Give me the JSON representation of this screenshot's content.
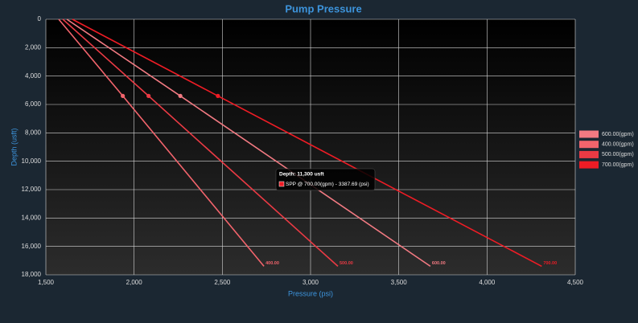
{
  "chart_data": {
    "type": "line",
    "title": "Pump Pressure",
    "x_label": "Pressure (psi)",
    "y_label": "Depth (usft)",
    "xlim": [
      1500,
      4500
    ],
    "xticks": [
      {
        "value": 1500,
        "label": "1,500"
      },
      {
        "value": 2000,
        "label": "2,000"
      },
      {
        "value": 2500,
        "label": "2,500"
      },
      {
        "value": 3000,
        "label": "3,000"
      },
      {
        "value": 3500,
        "label": "3,500"
      },
      {
        "value": 4000,
        "label": "4,000"
      },
      {
        "value": 4500,
        "label": "4,500"
      }
    ],
    "ylim": [
      0,
      18000
    ],
    "y_inverted": true,
    "yticks": [
      0,
      {
        "value": 2000,
        "label": "2,000"
      },
      {
        "value": 4000,
        "label": "4,000"
      },
      {
        "value": 6000,
        "label": "6,000"
      },
      {
        "value": 8000,
        "label": "8,000"
      },
      {
        "value": 10000,
        "label": "10,000"
      },
      {
        "value": 12000,
        "label": "12,000"
      },
      {
        "value": 14000,
        "label": "14,000"
      },
      {
        "value": 16000,
        "label": "16,000"
      },
      {
        "value": 18000,
        "label": "18,000"
      }
    ],
    "grid": true,
    "legend": "right",
    "series": [
      {
        "name": "600.00(gpm)",
        "end_label": "600.00",
        "color": "#f27a82",
        "x": [
          1619,
          2262,
          3679
        ],
        "values": [
          0,
          5400,
          17400
        ]
      },
      {
        "name": "400.00(gpm)",
        "end_label": "400.00",
        "color": "#f2646c",
        "x": [
          1573,
          1936,
          2736
        ],
        "values": [
          0,
          5400,
          17400
        ]
      },
      {
        "name": "500.00(gpm)",
        "end_label": "500.00",
        "color": "#ea3a44",
        "x": [
          1596,
          2082,
          3155
        ],
        "values": [
          0,
          5400,
          17400
        ]
      },
      {
        "name": "700.00(gpm)",
        "end_label": "700.00",
        "color": "#ee1c25",
        "x": [
          1650,
          2475,
          4310
        ],
        "values": [
          0,
          5400,
          17400
        ]
      }
    ],
    "tooltip": {
      "title": "Depth: 11,300 usft",
      "text": "SPP @ 700.00(gpm) - 3387.69 (psi)"
    }
  }
}
